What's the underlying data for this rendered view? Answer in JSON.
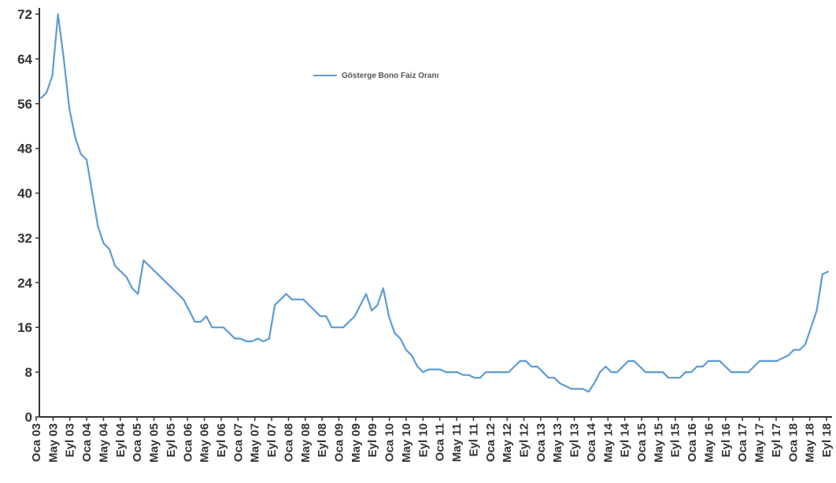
{
  "chart_data": {
    "type": "line",
    "title": "",
    "xlabel": "",
    "ylabel": "",
    "ylim": [
      0,
      72
    ],
    "y_ticks": [
      0,
      8,
      16,
      24,
      32,
      40,
      48,
      56,
      64,
      72
    ],
    "x_tick_labels": [
      "Oca 03",
      "May 03",
      "Eyl 03",
      "Oca 04",
      "May 04",
      "Eyl 04",
      "Oca 05",
      "May 05",
      "Eyl 05",
      "Oca 06",
      "May 06",
      "Eyl 06",
      "Oca 07",
      "May 07",
      "Eyl 07",
      "Oca 08",
      "May 08",
      "Eyl 08",
      "Oca 09",
      "May 09",
      "Eyl 09",
      "Oca 10",
      "May 10",
      "Eyl 10",
      "Oca 11",
      "May 11",
      "Eyl 11",
      "Oca 12",
      "May 12",
      "Eyl 12",
      "Oca 13",
      "May 13",
      "Eyl 13",
      "Oca 14",
      "May 14",
      "Eyl 14",
      "Oca 15",
      "May 15",
      "Eyl 15",
      "Oca 16",
      "May 16",
      "Eyl 16",
      "Oca 17",
      "May 17",
      "Eyl 17",
      "Oca 18",
      "May 18",
      "Eyl 18"
    ],
    "grid": false,
    "legend_position": "top-center",
    "series": [
      {
        "name": "Gösterge Bono Faiz Oranı",
        "color": "#5b9bd5",
        "values": [
          57,
          58,
          61,
          72,
          64,
          55,
          50,
          47,
          46,
          40,
          34,
          31,
          30,
          27,
          26,
          25,
          23,
          22,
          28,
          27,
          26,
          25,
          24,
          23,
          22,
          21,
          19,
          17,
          17,
          18,
          16,
          16,
          16,
          15,
          14,
          14,
          13.5,
          13.5,
          14,
          13.5,
          14,
          20,
          21,
          22,
          21,
          21,
          21,
          20,
          19,
          18,
          18,
          16,
          16,
          16,
          17,
          18,
          20,
          22,
          19,
          20,
          23,
          18,
          15,
          14,
          12,
          11,
          9,
          8,
          8.5,
          8.5,
          8.5,
          8,
          8,
          8,
          7.5,
          7.5,
          7,
          7,
          8,
          8,
          8,
          8,
          8,
          9,
          10,
          10,
          9,
          9,
          8,
          7,
          7,
          6,
          5.5,
          5,
          5,
          5,
          4.5,
          6,
          8,
          9,
          8,
          8,
          9,
          10,
          10,
          9,
          8,
          8,
          8,
          8,
          7,
          7,
          7,
          8,
          8,
          9,
          9,
          10,
          10,
          10,
          9,
          8,
          8,
          8,
          8,
          9,
          10,
          10,
          10,
          10,
          10.5,
          11,
          12,
          12,
          13,
          16,
          19,
          25.5,
          26
        ]
      }
    ]
  }
}
